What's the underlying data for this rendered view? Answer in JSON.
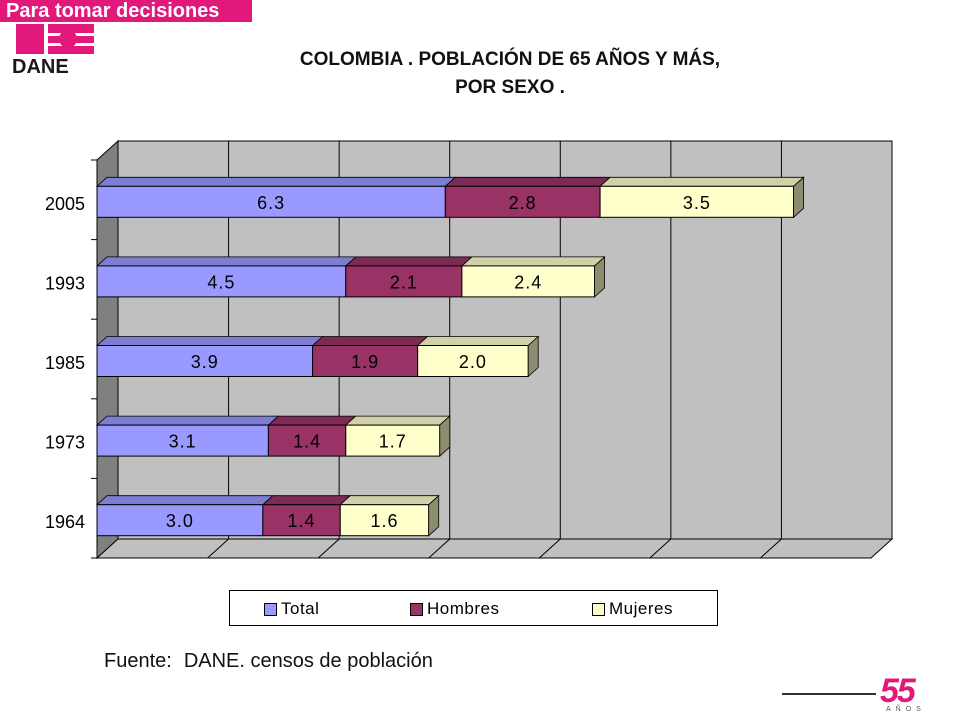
{
  "header": {
    "tagline": "Para tomar decisiones",
    "logo_text": "DANE",
    "brand_color": "#e2187a"
  },
  "title": {
    "line1": "COLOMBIA . POBLACIÓN DE 65 AÑOS Y MÁS,",
    "line2": "POR SEXO ."
  },
  "chart_data": {
    "type": "bar",
    "orientation": "horizontal",
    "stacked": true,
    "style": "3d",
    "categories": [
      "2005",
      "1993",
      "1985",
      "1973",
      "1964"
    ],
    "series": [
      {
        "name": "Total",
        "color": "#9999ff",
        "values": [
          6.3,
          4.5,
          3.9,
          3.1,
          3.0
        ]
      },
      {
        "name": "Hombres",
        "color": "#993366",
        "values": [
          2.8,
          2.1,
          1.9,
          1.4,
          1.4
        ]
      },
      {
        "name": "Mujeres",
        "color": "#ffffcc",
        "values": [
          3.5,
          2.4,
          2.0,
          1.7,
          1.6
        ]
      }
    ],
    "xlim": [
      0,
      14
    ],
    "grid": true,
    "legend_position": "bottom",
    "wall_color": "#c0c0c0"
  },
  "legend": {
    "items": [
      {
        "label": "Total",
        "color": "#9999ff"
      },
      {
        "label": "Hombres",
        "color": "#993366"
      },
      {
        "label": "Mujeres",
        "color": "#ffffcc"
      }
    ]
  },
  "footer": {
    "source_label": "Fuente:",
    "source_text": "DANE. censos de población",
    "anniversary": "55",
    "anniversary_sub": "AÑOS"
  }
}
